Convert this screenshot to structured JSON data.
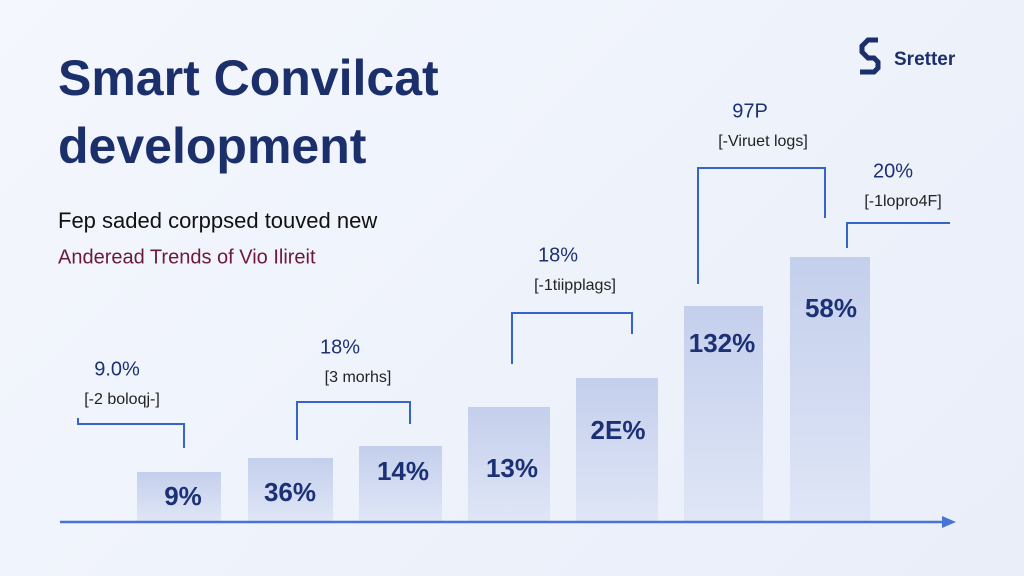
{
  "header": {
    "title_lines": [
      "Smart Convilcat",
      "development"
    ],
    "subtitle_lines": [
      "Fep saded corppsed touved new",
      "Anderead Trends of Vio Ilireit"
    ],
    "logo": "Sretter"
  },
  "bars": [
    {
      "label": "9%"
    },
    {
      "label": "36%"
    },
    {
      "label": "14%"
    },
    {
      "label": "13%"
    },
    {
      "label": "2E%"
    },
    {
      "label": "132%"
    },
    {
      "label": "58%"
    }
  ],
  "callouts": [
    {
      "value": "9.0%",
      "note": "[-2 boloqj-]"
    },
    {
      "value": "18%",
      "note": "[3 morhs]"
    },
    {
      "value": "18%",
      "note": "[-1tiipplags]"
    },
    {
      "value": "97P",
      "note": "[-Viruet logs]"
    },
    {
      "value": "20%",
      "note": "[-1lopro4F]"
    }
  ]
}
